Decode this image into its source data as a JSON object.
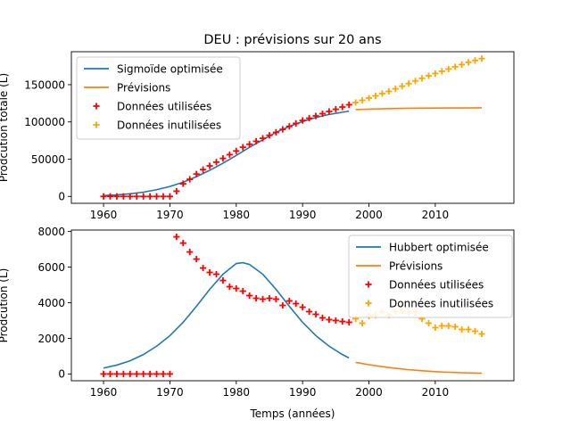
{
  "figure_title": "DEU : prévisions sur 20 ans",
  "colors": {
    "fit": "#1f77b4",
    "forecast": "#ff7f0e",
    "used": "#ff0000",
    "unused": "#ffa500"
  },
  "chart_data": [
    {
      "type": "line",
      "title": "DEU : prévisions sur 20 ans",
      "xlabel": "",
      "ylabel": "Prodcution totale (L)",
      "xlim": [
        1955.15,
        2021.85
      ],
      "ylim": [
        -9250,
        194250
      ],
      "xticks": [
        1960,
        1970,
        1980,
        1990,
        2000,
        2010
      ],
      "xtick_labels": [
        "1960",
        "1970",
        "1980",
        "1990",
        "2000",
        "2010"
      ],
      "yticks": [
        0,
        50000,
        100000,
        150000
      ],
      "ytick_labels": [
        "0",
        "50000",
        "100000",
        "150000"
      ],
      "legend_position": "top-left",
      "series": [
        {
          "name": "Sigmoïde optimisée",
          "kind": "line",
          "color": "#1f77b4",
          "points": [
            [
              1960,
              1200
            ],
            [
              1962,
              2000
            ],
            [
              1964,
              3500
            ],
            [
              1966,
              5700
            ],
            [
              1968,
              9000
            ],
            [
              1970,
              13300
            ],
            [
              1972,
              19000
            ],
            [
              1974,
              26500
            ],
            [
              1976,
              35000
            ],
            [
              1978,
              44500
            ],
            [
              1980,
              55000
            ],
            [
              1982,
              66000
            ],
            [
              1984,
              76000
            ],
            [
              1986,
              86000
            ],
            [
              1988,
              94000
            ],
            [
              1990,
              100500
            ],
            [
              1992,
              106000
            ],
            [
              1994,
              110000
            ],
            [
              1996,
              113000
            ],
            [
              1997,
              114500
            ]
          ]
        },
        {
          "name": "Prévisions",
          "kind": "line",
          "color": "#ff7f0e",
          "points": [
            [
              1998,
              116500
            ],
            [
              2000,
              117200
            ],
            [
              2003,
              117900
            ],
            [
              2006,
              118300
            ],
            [
              2010,
              118600
            ],
            [
              2014,
              118800
            ],
            [
              2017,
              118900
            ]
          ]
        },
        {
          "name": "Données utilisées",
          "kind": "scatter",
          "marker": "+",
          "color": "#ff0000",
          "points": [
            [
              1960,
              0
            ],
            [
              1961,
              0
            ],
            [
              1962,
              0
            ],
            [
              1963,
              0
            ],
            [
              1964,
              0
            ],
            [
              1965,
              0
            ],
            [
              1966,
              0
            ],
            [
              1967,
              0
            ],
            [
              1968,
              0
            ],
            [
              1969,
              0
            ],
            [
              1970,
              0
            ],
            [
              1971,
              7000
            ],
            [
              1972,
              17000
            ],
            [
              1973,
              23000
            ],
            [
              1974,
              30000
            ],
            [
              1975,
              36000
            ],
            [
              1976,
              41000
            ],
            [
              1977,
              46000
            ],
            [
              1978,
              51000
            ],
            [
              1979,
              56000
            ],
            [
              1980,
              61000
            ],
            [
              1981,
              66000
            ],
            [
              1982,
              70000
            ],
            [
              1983,
              74000
            ],
            [
              1984,
              78000
            ],
            [
              1985,
              82000
            ],
            [
              1986,
              86000
            ],
            [
              1987,
              90000
            ],
            [
              1988,
              94000
            ],
            [
              1989,
              98000
            ],
            [
              1990,
              102000
            ],
            [
              1991,
              105000
            ],
            [
              1992,
              108000
            ],
            [
              1993,
              111000
            ],
            [
              1994,
              114000
            ],
            [
              1995,
              117000
            ],
            [
              1996,
              120000
            ],
            [
              1997,
              123000
            ]
          ]
        },
        {
          "name": "Données inutilisées",
          "kind": "scatter",
          "marker": "+",
          "color": "#ffa500",
          "points": [
            [
              1998,
              126000
            ],
            [
              1999,
              129000
            ],
            [
              2000,
              132000
            ],
            [
              2001,
              135000
            ],
            [
              2002,
              138000
            ],
            [
              2003,
              141000
            ],
            [
              2004,
              144500
            ],
            [
              2005,
              148000
            ],
            [
              2006,
              151500
            ],
            [
              2007,
              155000
            ],
            [
              2008,
              158500
            ],
            [
              2009,
              162000
            ],
            [
              2010,
              165000
            ],
            [
              2011,
              168000
            ],
            [
              2012,
              171000
            ],
            [
              2013,
              174000
            ],
            [
              2014,
              177000
            ],
            [
              2015,
              180000
            ],
            [
              2016,
              182500
            ],
            [
              2017,
              185000
            ]
          ]
        }
      ]
    },
    {
      "type": "line",
      "title": "",
      "xlabel": "Temps (années)",
      "ylabel": "Prodcution (L)",
      "xlim": [
        1955.15,
        2021.85
      ],
      "ylim": [
        -380,
        8080
      ],
      "xticks": [
        1960,
        1970,
        1980,
        1990,
        2000,
        2010
      ],
      "xtick_labels": [
        "1960",
        "1970",
        "1980",
        "1990",
        "2000",
        "2010"
      ],
      "yticks": [
        0,
        2000,
        4000,
        6000,
        8000
      ],
      "ytick_labels": [
        "0",
        "2000",
        "4000",
        "6000",
        "8000"
      ],
      "legend_position": "top-right",
      "series": [
        {
          "name": "Hubbert optimisée",
          "kind": "line",
          "color": "#1f77b4",
          "points": [
            [
              1960,
              330
            ],
            [
              1962,
              500
            ],
            [
              1964,
              740
            ],
            [
              1966,
              1090
            ],
            [
              1968,
              1560
            ],
            [
              1970,
              2150
            ],
            [
              1972,
              2900
            ],
            [
              1974,
              3800
            ],
            [
              1976,
              4750
            ],
            [
              1978,
              5600
            ],
            [
              1980,
              6200
            ],
            [
              1981,
              6250
            ],
            [
              1982,
              6150
            ],
            [
              1984,
              5600
            ],
            [
              1986,
              4750
            ],
            [
              1988,
              3800
            ],
            [
              1990,
              2900
            ],
            [
              1992,
              2150
            ],
            [
              1994,
              1560
            ],
            [
              1996,
              1090
            ],
            [
              1997,
              900
            ]
          ]
        },
        {
          "name": "Prévisions",
          "kind": "line",
          "color": "#ff7f0e",
          "points": [
            [
              1998,
              650
            ],
            [
              2000,
              520
            ],
            [
              2002,
              410
            ],
            [
              2004,
              320
            ],
            [
              2006,
              240
            ],
            [
              2008,
              180
            ],
            [
              2010,
              130
            ],
            [
              2012,
              95
            ],
            [
              2014,
              70
            ],
            [
              2017,
              40
            ]
          ]
        },
        {
          "name": "Données utilisées",
          "kind": "scatter",
          "marker": "+",
          "color": "#ff0000",
          "points": [
            [
              1960,
              0
            ],
            [
              1961,
              0
            ],
            [
              1962,
              0
            ],
            [
              1963,
              0
            ],
            [
              1964,
              0
            ],
            [
              1965,
              0
            ],
            [
              1966,
              0
            ],
            [
              1967,
              0
            ],
            [
              1968,
              0
            ],
            [
              1969,
              0
            ],
            [
              1970,
              0
            ],
            [
              1971,
              7700
            ],
            [
              1972,
              7350
            ],
            [
              1973,
              6850
            ],
            [
              1974,
              6450
            ],
            [
              1975,
              5950
            ],
            [
              1976,
              5700
            ],
            [
              1977,
              5600
            ],
            [
              1978,
              5250
            ],
            [
              1979,
              4900
            ],
            [
              1980,
              4800
            ],
            [
              1981,
              4650
            ],
            [
              1982,
              4400
            ],
            [
              1983,
              4250
            ],
            [
              1984,
              4200
            ],
            [
              1985,
              4250
            ],
            [
              1986,
              4200
            ],
            [
              1987,
              3850
            ],
            [
              1988,
              4100
            ],
            [
              1989,
              3950
            ],
            [
              1990,
              3750
            ],
            [
              1991,
              3500
            ],
            [
              1992,
              3350
            ],
            [
              1993,
              3150
            ],
            [
              1994,
              3050
            ],
            [
              1995,
              3000
            ],
            [
              1996,
              2950
            ],
            [
              1997,
              2900
            ]
          ]
        },
        {
          "name": "Données inutilisées",
          "kind": "scatter",
          "marker": "+",
          "color": "#ffa500",
          "points": [
            [
              1998,
              3100
            ],
            [
              1999,
              2850
            ],
            [
              2000,
              3250
            ],
            [
              2001,
              3300
            ],
            [
              2002,
              3500
            ],
            [
              2003,
              3300
            ],
            [
              2004,
              3500
            ],
            [
              2005,
              3550
            ],
            [
              2006,
              3450
            ],
            [
              2007,
              3450
            ],
            [
              2008,
              3100
            ],
            [
              2009,
              2850
            ],
            [
              2010,
              2600
            ],
            [
              2011,
              2700
            ],
            [
              2012,
              2700
            ],
            [
              2013,
              2650
            ],
            [
              2014,
              2500
            ],
            [
              2015,
              2500
            ],
            [
              2016,
              2400
            ],
            [
              2017,
              2250
            ]
          ]
        }
      ]
    }
  ]
}
